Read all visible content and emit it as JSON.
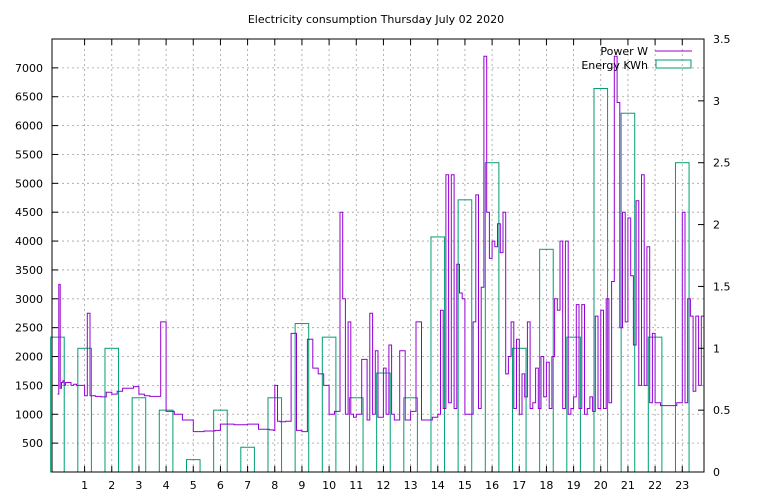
{
  "chart_data": {
    "type": "bar",
    "title": "Electricity consumption Thursday July 02 2020",
    "grid": true,
    "legend_position": "top-right",
    "x_ticks": [
      "1",
      "2",
      "3",
      "4",
      "5",
      "6",
      "7",
      "8",
      "9",
      "10",
      "11",
      "12",
      "13",
      "14",
      "15",
      "16",
      "17",
      "18",
      "19",
      "20",
      "21",
      "22",
      "23"
    ],
    "xlim": [
      -0.2,
      23.8
    ],
    "y_left": {
      "ylim": [
        0,
        7500
      ],
      "ticks": [
        "500",
        "1000",
        "1500",
        "2000",
        "2500",
        "3000",
        "3500",
        "4000",
        "4500",
        "5000",
        "5500",
        "6000",
        "6500",
        "7000"
      ]
    },
    "y_right": {
      "ylim": [
        0,
        3.5
      ],
      "ticks": [
        "0",
        "0.5",
        "1",
        "1.5",
        "2",
        "2.5",
        "3",
        "3.5"
      ]
    },
    "series": [
      {
        "name": "Power W",
        "type": "line",
        "axis": "left",
        "color": "#9400d3",
        "x": [
          0.0,
          0.05,
          0.1,
          0.15,
          0.2,
          0.25,
          0.3,
          0.5,
          0.6,
          0.7,
          1.0,
          1.1,
          1.2,
          1.4,
          1.6,
          1.8,
          2.0,
          2.2,
          2.4,
          2.6,
          2.8,
          3.0,
          3.2,
          3.4,
          3.6,
          3.8,
          4.0,
          4.3,
          4.6,
          5.0,
          5.4,
          5.8,
          6.0,
          6.5,
          7.0,
          7.4,
          7.8,
          7.95,
          8.0,
          8.1,
          8.2,
          8.4,
          8.6,
          8.8,
          9.0,
          9.2,
          9.4,
          9.6,
          9.8,
          10.0,
          10.2,
          10.4,
          10.5,
          10.6,
          10.7,
          10.8,
          10.9,
          11.0,
          11.2,
          11.4,
          11.5,
          11.6,
          11.7,
          11.8,
          12.0,
          12.1,
          12.2,
          12.3,
          12.4,
          12.6,
          12.8,
          13.0,
          13.2,
          13.4,
          13.6,
          13.8,
          14.0,
          14.1,
          14.2,
          14.3,
          14.4,
          14.5,
          14.6,
          14.7,
          14.8,
          14.9,
          15.0,
          15.1,
          15.2,
          15.3,
          15.4,
          15.5,
          15.6,
          15.7,
          15.8,
          15.9,
          16.0,
          16.1,
          16.2,
          16.3,
          16.4,
          16.5,
          16.6,
          16.7,
          16.8,
          16.9,
          17.0,
          17.1,
          17.2,
          17.3,
          17.4,
          17.5,
          17.6,
          17.7,
          17.8,
          17.9,
          18.0,
          18.1,
          18.2,
          18.3,
          18.4,
          18.5,
          18.6,
          18.7,
          18.8,
          18.9,
          19.0,
          19.1,
          19.2,
          19.3,
          19.4,
          19.5,
          19.6,
          19.7,
          19.8,
          19.9,
          20.0,
          20.1,
          20.2,
          20.3,
          20.4,
          20.5,
          20.6,
          20.7,
          20.8,
          20.9,
          21.0,
          21.1,
          21.2,
          21.3,
          21.4,
          21.5,
          21.6,
          21.7,
          21.8,
          21.9,
          22.0,
          22.2,
          22.4,
          22.6,
          22.8,
          23.0,
          23.1,
          23.2,
          23.3,
          23.4,
          23.5,
          23.6,
          23.7,
          23.8
        ],
        "y": [
          1350,
          3250,
          1450,
          1550,
          1580,
          1500,
          1550,
          1500,
          1520,
          1500,
          1320,
          2750,
          1320,
          1310,
          1300,
          1380,
          1350,
          1400,
          1450,
          1450,
          1480,
          1350,
          1320,
          1310,
          1310,
          2600,
          1050,
          1000,
          900,
          700,
          710,
          720,
          830,
          820,
          830,
          740,
          730,
          720,
          1500,
          880,
          870,
          880,
          2400,
          720,
          700,
          2300,
          1800,
          1700,
          1500,
          1000,
          1050,
          4500,
          3000,
          1000,
          2600,
          1000,
          950,
          1000,
          1950,
          900,
          2750,
          1000,
          2100,
          950,
          1800,
          1000,
          2200,
          1000,
          900,
          2100,
          900,
          1050,
          2600,
          900,
          900,
          950,
          1000,
          2800,
          1100,
          5150,
          1200,
          5150,
          1100,
          3600,
          3100,
          3000,
          1000,
          1000,
          1000,
          2600,
          4800,
          1100,
          3200,
          7200,
          4500,
          3700,
          4000,
          3900,
          4300,
          3800,
          4500,
          1700,
          2000,
          2600,
          1100,
          2300,
          1000,
          1700,
          1300,
          2600,
          1100,
          1200,
          1800,
          1100,
          2000,
          1300,
          1900,
          1100,
          2000,
          3000,
          2800,
          4000,
          1100,
          4000,
          1000,
          1100,
          1300,
          2900,
          1100,
          2900,
          1000,
          1100,
          1300,
          1050,
          2700,
          1100,
          2800,
          1100,
          3000,
          1200,
          3300,
          7200,
          6400,
          2500,
          4500,
          2600,
          4400,
          3400,
          2200,
          4700,
          1500,
          5150,
          1500,
          3900,
          1200,
          2400,
          1200,
          1150,
          1150,
          1150,
          1200,
          4500,
          1200,
          3000,
          2700,
          1400,
          2700,
          1500,
          2700,
          1300
        ]
      },
      {
        "name": "Energy KWh",
        "type": "bar",
        "axis": "right",
        "color": "#009e73",
        "x": [
          0,
          1,
          2,
          3,
          4,
          5,
          6,
          7,
          8,
          9,
          10,
          11,
          12,
          13,
          14,
          15,
          16,
          17,
          18,
          19,
          20,
          21,
          22,
          23
        ],
        "values": [
          1.09,
          1.0,
          1.0,
          0.6,
          0.5,
          0.1,
          0.5,
          0.2,
          0.6,
          1.2,
          1.09,
          0.6,
          0.8,
          0.6,
          1.9,
          2.2,
          2.5,
          1.0,
          1.8,
          1.09,
          3.1,
          2.9,
          1.09,
          2.5
        ]
      }
    ]
  }
}
